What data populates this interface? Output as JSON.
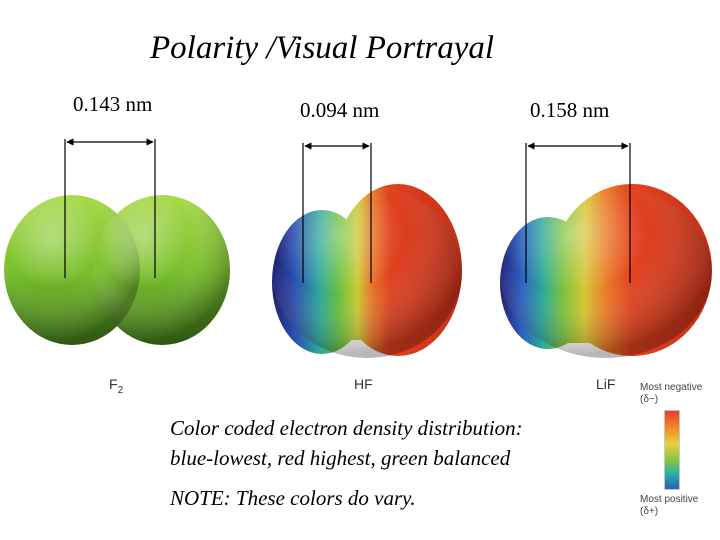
{
  "title": "Polarity /Visual Portrayal",
  "molecules": [
    {
      "id": "f2",
      "label": "F",
      "subscript": "2",
      "bond_length": "0.143 nm"
    },
    {
      "id": "hf",
      "label": "HF",
      "subscript": "",
      "bond_length": "0.094 nm"
    },
    {
      "id": "lif",
      "label": "LiF",
      "subscript": "",
      "bond_length": "0.158 nm"
    }
  ],
  "caption": {
    "line1": "Color coded electron density distribution:",
    "line2": "blue-lowest, red highest, green balanced"
  },
  "note": "NOTE: These colors do vary.",
  "legend": {
    "top_label": "Most negative",
    "top_symbol": "(δ−)",
    "bottom_label": "Most positive",
    "bottom_symbol": "(δ+)"
  },
  "colors": {
    "neutral_green": "#8cc63f",
    "low_density_blue": "#2a2e8c",
    "high_density_red": "#e03a20"
  }
}
